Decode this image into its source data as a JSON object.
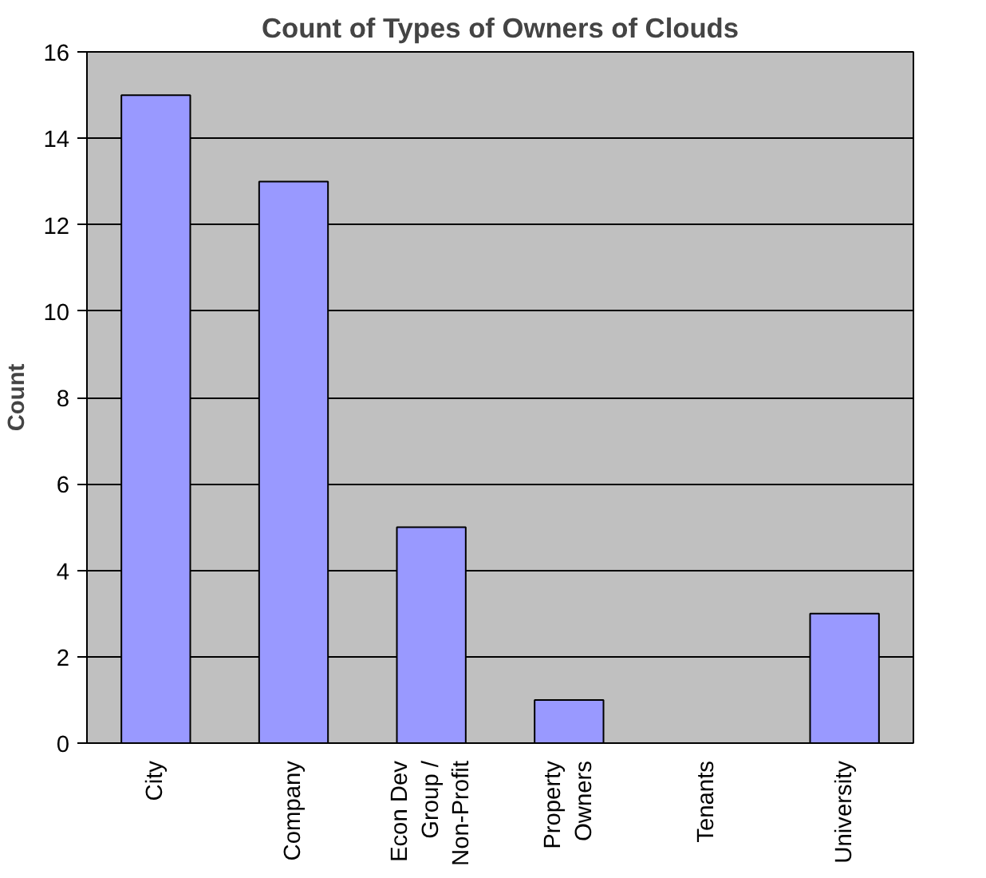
{
  "chart_data": {
    "type": "bar",
    "title": "Count of Types of Owners of Clouds",
    "ylabel": "Count",
    "categories": [
      "City",
      "Company",
      "Econ Dev\nGroup /\nNon-Profit",
      "Property\nOwners",
      "Tenants",
      "University"
    ],
    "values": [
      15,
      13,
      5,
      1,
      0,
      3
    ],
    "color": "#9999ff",
    "ylim": [
      0,
      16
    ],
    "yticks": [
      0,
      2,
      4,
      6,
      8,
      10,
      12,
      14,
      16
    ],
    "grid": "y"
  }
}
